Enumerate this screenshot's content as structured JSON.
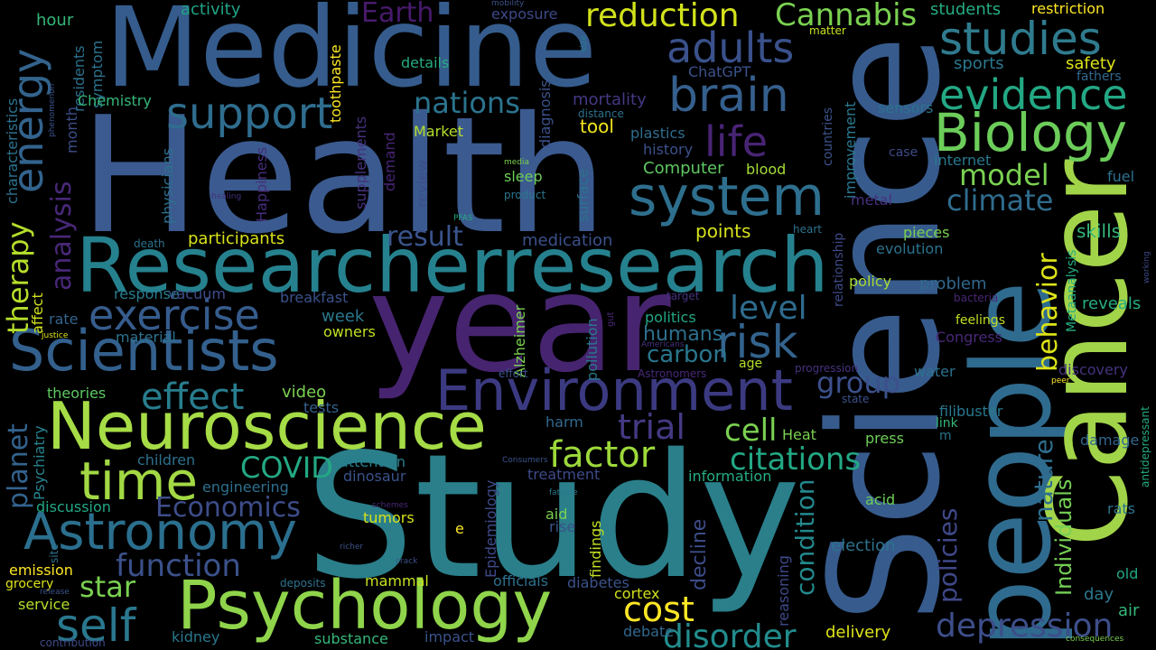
{
  "words": [
    {
      "text": "Health",
      "color": "#3b5a8f"
    },
    {
      "text": "Study",
      "color": "#2a7f8a"
    },
    {
      "text": "Medicine",
      "color": "#355c8d"
    },
    {
      "text": "year",
      "color": "#47246f"
    },
    {
      "text": "Science",
      "color": "#375b8d"
    },
    {
      "text": "people",
      "color": "#2f6b8e"
    },
    {
      "text": "Cancer",
      "color": "#a2d44a"
    },
    {
      "text": "Researcherresearch",
      "color": "#26818e"
    },
    {
      "text": "Neuroscience",
      "color": "#a6dc46"
    },
    {
      "text": "Psychology",
      "color": "#8fd44b"
    },
    {
      "text": "Environment",
      "color": "#3b3a81"
    },
    {
      "text": "Scientists",
      "color": "#33608d"
    },
    {
      "text": "Biology",
      "color": "#6ccd5a"
    },
    {
      "text": "system",
      "color": "#2e6f8e"
    },
    {
      "text": "brain",
      "color": "#355f8d"
    },
    {
      "text": "Astronomy",
      "color": "#2b6f8e"
    },
    {
      "text": "time",
      "color": "#a2d944"
    },
    {
      "text": "studies",
      "color": "#2f7b8e"
    },
    {
      "text": "evidence",
      "color": "#23a884"
    },
    {
      "text": "support",
      "color": "#2f6d8e"
    },
    {
      "text": "exercise",
      "color": "#365c8d"
    },
    {
      "text": "energy",
      "color": "#33638d"
    },
    {
      "text": "adults",
      "color": "#3a518b"
    },
    {
      "text": "life",
      "color": "#482475"
    },
    {
      "text": "risk",
      "color": "#33638d"
    },
    {
      "text": "effect",
      "color": "#287d8e"
    },
    {
      "text": "self",
      "color": "#2a788e"
    },
    {
      "text": "factor",
      "color": "#9dd93b"
    },
    {
      "text": "reduction",
      "color": "#d2e21b"
    },
    {
      "text": "Cannabis",
      "color": "#7ad151"
    },
    {
      "text": "cost",
      "color": "#fde725"
    },
    {
      "text": "disorder",
      "color": "#228c8d"
    },
    {
      "text": "depression",
      "color": "#3d4e8a"
    },
    {
      "text": "citations",
      "color": "#22a884"
    },
    {
      "text": "cell",
      "color": "#7ad151"
    },
    {
      "text": "trial",
      "color": "#443a83"
    },
    {
      "text": "model",
      "color": "#7ad151"
    },
    {
      "text": "nations",
      "color": "#2b748e"
    },
    {
      "text": "level",
      "color": "#2f6b8e"
    },
    {
      "text": "group",
      "color": "#3c508b"
    },
    {
      "text": "climate",
      "color": "#2f6c8e"
    },
    {
      "text": "result",
      "color": "#3a548c"
    },
    {
      "text": "COVID",
      "color": "#23a983"
    },
    {
      "text": "star",
      "color": "#7ad151"
    },
    {
      "text": "function",
      "color": "#3b518b"
    },
    {
      "text": "Economics",
      "color": "#3d4d8a"
    },
    {
      "text": "therapy",
      "color": "#b5de2b"
    },
    {
      "text": "analysis",
      "color": "#482878"
    },
    {
      "text": "planet",
      "color": "#33638d"
    },
    {
      "text": "behavior",
      "color": "#dde318"
    },
    {
      "text": "nature",
      "color": "#2e6e8e"
    },
    {
      "text": "Individuals",
      "color": "#75d054"
    },
    {
      "text": "policies",
      "color": "#3f4889"
    },
    {
      "text": "condition",
      "color": "#23898e"
    },
    {
      "text": "decline",
      "color": "#3d4d8a"
    },
    {
      "text": "Earth",
      "color": "#481a6c"
    },
    {
      "text": "participants",
      "color": "#d8e219"
    },
    {
      "text": "points",
      "color": "#d5e21a"
    },
    {
      "text": "medication",
      "color": "#3b518b"
    },
    {
      "text": "carbon",
      "color": "#2a768e"
    },
    {
      "text": "humans",
      "color": "#2d708e"
    },
    {
      "text": "politics",
      "color": "#22a785"
    },
    {
      "text": "Computer",
      "color": "#5ec962"
    },
    {
      "text": "blood",
      "color": "#a5db36"
    },
    {
      "text": "plastics",
      "color": "#2e6e8e"
    },
    {
      "text": "history",
      "color": "#3b518b"
    },
    {
      "text": "tool",
      "color": "#f1e51d"
    },
    {
      "text": "mortality",
      "color": "#443983"
    },
    {
      "text": "Market",
      "color": "#b5de2b"
    },
    {
      "text": "sleep",
      "color": "#6ece58"
    },
    {
      "text": "surface",
      "color": "#2c718e"
    },
    {
      "text": "ChatGPT",
      "color": "#3b528b"
    },
    {
      "text": "details",
      "color": "#25ac82"
    },
    {
      "text": "activity",
      "color": "#20a386"
    },
    {
      "text": "exposure",
      "color": "#3e4989"
    },
    {
      "text": "hour",
      "color": "#35b779"
    },
    {
      "text": "symptom",
      "color": "#2c738e"
    },
    {
      "text": "residents",
      "color": "#2d718e"
    },
    {
      "text": "month",
      "color": "#3d4e8a"
    },
    {
      "text": "Chemistry",
      "color": "#35b779"
    },
    {
      "text": "characteristics",
      "color": "#2c728e"
    },
    {
      "text": "toothpaste",
      "color": "#fde725"
    },
    {
      "text": "supplements",
      "color": "#46327e"
    },
    {
      "text": "demand",
      "color": "#482475"
    },
    {
      "text": "review",
      "color": "#3d4d8a"
    },
    {
      "text": "diagnosis",
      "color": "#3b528b"
    },
    {
      "text": "physicians",
      "color": "#2d708e"
    },
    {
      "text": "Happiness",
      "color": "#472d7b"
    },
    {
      "text": "response",
      "color": "#287c8e"
    },
    {
      "text": "vacuum",
      "color": "#3e4c8a"
    },
    {
      "text": "breakfast",
      "color": "#3b528b"
    },
    {
      "text": "rate",
      "color": "#33638d"
    },
    {
      "text": "material",
      "color": "#2c728e"
    },
    {
      "text": "affect",
      "color": "#d0e11c"
    },
    {
      "text": "week",
      "color": "#2a788e"
    },
    {
      "text": "owners",
      "color": "#c2df23"
    },
    {
      "text": "theories",
      "color": "#5ec962"
    },
    {
      "text": "video",
      "color": "#7ad151"
    },
    {
      "text": "tests",
      "color": "#35608d"
    },
    {
      "text": "Psychiatry",
      "color": "#26828e"
    },
    {
      "text": "children",
      "color": "#2c728e"
    },
    {
      "text": "engineering",
      "color": "#2e6f8e"
    },
    {
      "text": "discussion",
      "color": "#22a884"
    },
    {
      "text": "attention",
      "color": "#277f8e"
    },
    {
      "text": "dinosaur",
      "color": "#3a538b"
    },
    {
      "text": "treatment",
      "color": "#3e4a89"
    },
    {
      "text": "tumors",
      "color": "#d5e21a"
    },
    {
      "text": "aid",
      "color": "#7ad151"
    },
    {
      "text": "rise",
      "color": "#3b528b"
    },
    {
      "text": "emission",
      "color": "#fde725"
    },
    {
      "text": "grocery",
      "color": "#dde318"
    },
    {
      "text": "service",
      "color": "#b5de2b"
    },
    {
      "text": "mammal",
      "color": "#c8e020"
    },
    {
      "text": "officials",
      "color": "#2d708e"
    },
    {
      "text": "diabetes",
      "color": "#3b528b"
    },
    {
      "text": "substance",
      "color": "#35b779"
    },
    {
      "text": "impact",
      "color": "#3b528b"
    },
    {
      "text": "kidney",
      "color": "#2a788e"
    },
    {
      "text": "debate",
      "color": "#31688e"
    },
    {
      "text": "delivery",
      "color": "#dde318"
    },
    {
      "text": "cortex",
      "color": "#d0e11c"
    },
    {
      "text": "findings",
      "color": "#c2df23"
    },
    {
      "text": "Epidemiology",
      "color": "#3e4a89"
    },
    {
      "text": "Alzheimer",
      "color": "#7ad151"
    },
    {
      "text": "pollution",
      "color": "#2a788e"
    },
    {
      "text": "harm",
      "color": "#31688e"
    },
    {
      "text": "election",
      "color": "#2c728e"
    },
    {
      "text": "information",
      "color": "#25ac82"
    },
    {
      "text": "acid",
      "color": "#6ece58"
    },
    {
      "text": "press",
      "color": "#6ece58"
    },
    {
      "text": "reasoning",
      "color": "#3e4a89"
    },
    {
      "text": "policy",
      "color": "#a8db34"
    },
    {
      "text": "problem",
      "color": "#31688e"
    },
    {
      "text": "evolution",
      "color": "#2c728e"
    },
    {
      "text": "pieces",
      "color": "#7ad151"
    },
    {
      "text": "relationship",
      "color": "#3e4a89"
    },
    {
      "text": "improvement",
      "color": "#2a788e"
    },
    {
      "text": "countries",
      "color": "#3b528b"
    },
    {
      "text": "metal",
      "color": "#46327e"
    },
    {
      "text": "sensors",
      "color": "#2c728e"
    },
    {
      "text": "internet",
      "color": "#2a788e"
    },
    {
      "text": "case",
      "color": "#3e4a89"
    },
    {
      "text": "fuel",
      "color": "#2c728e"
    },
    {
      "text": "skills",
      "color": "#35b779"
    },
    {
      "text": "safety",
      "color": "#dde318"
    },
    {
      "text": "fathers",
      "color": "#31688e"
    },
    {
      "text": "sports",
      "color": "#2a788e"
    },
    {
      "text": "students",
      "color": "#25ac82"
    },
    {
      "text": "restriction",
      "color": "#fde725"
    },
    {
      "text": "matter",
      "color": "#c8e020"
    },
    {
      "text": "Congress",
      "color": "#482878"
    },
    {
      "text": "feelings",
      "color": "#c2df23"
    },
    {
      "text": "Metaanalysis",
      "color": "#25ac82"
    },
    {
      "text": "reveals",
      "color": "#25ac82"
    },
    {
      "text": "discovery",
      "color": "#46327e"
    },
    {
      "text": "water",
      "color": "#2c728e"
    },
    {
      "text": "filibuster",
      "color": "#2a788e"
    },
    {
      "text": "link",
      "color": "#35b779"
    },
    {
      "text": "damage",
      "color": "#31688e"
    },
    {
      "text": "Heat",
      "color": "#7ad151"
    },
    {
      "text": "rats",
      "color": "#2c728e"
    },
    {
      "text": "old",
      "color": "#22a884"
    },
    {
      "text": "day",
      "color": "#2a788e"
    },
    {
      "text": "air",
      "color": "#35b779"
    },
    {
      "text": "antidepressant",
      "color": "#25ac82"
    },
    {
      "text": "heart",
      "color": "#2c728e"
    },
    {
      "text": "bacteria",
      "color": "#482878"
    },
    {
      "text": "age",
      "color": "#b5de2b"
    },
    {
      "text": "progression",
      "color": "#46327e"
    },
    {
      "text": "state",
      "color": "#3b528b"
    },
    {
      "text": "Americans",
      "color": "#46327e"
    },
    {
      "text": "Astronomers",
      "color": "#482878"
    },
    {
      "text": "target",
      "color": "#46327e"
    },
    {
      "text": "effort",
      "color": "#3b528b"
    },
    {
      "text": "gut",
      "color": "#482878"
    },
    {
      "text": "Consumers",
      "color": "#3b528b"
    },
    {
      "text": "schemes",
      "color": "#482878"
    },
    {
      "text": "fatigue",
      "color": "#2a788e"
    },
    {
      "text": "crack",
      "color": "#3b528b"
    },
    {
      "text": "richer",
      "color": "#3b528b"
    },
    {
      "text": "deposits",
      "color": "#2c728e"
    },
    {
      "text": "contribution",
      "color": "#3e4a89"
    },
    {
      "text": "release",
      "color": "#3b528b"
    },
    {
      "text": "consequences",
      "color": "#7ad151"
    },
    {
      "text": "PFAS",
      "color": "#25ac82"
    },
    {
      "text": "media",
      "color": "#7ad151"
    },
    {
      "text": "product",
      "color": "#2a788e"
    },
    {
      "text": "distance",
      "color": "#2c728e"
    },
    {
      "text": "size",
      "color": "#2a788e"
    },
    {
      "text": "mobility",
      "color": "#3b528b"
    },
    {
      "text": "death",
      "color": "#2c728e"
    },
    {
      "text": "justice",
      "color": "#dde318"
    },
    {
      "text": "healing",
      "color": "#46327e"
    },
    {
      "text": "phenomenon",
      "color": "#3b528b"
    },
    {
      "text": "working",
      "color": "#3e4a89"
    },
    {
      "text": "peer",
      "color": "#fde725"
    },
    {
      "text": "e",
      "color": "#fde725"
    },
    {
      "text": "m",
      "color": "#2c728e"
    },
    {
      "text": "site",
      "color": "#2c728e"
    }
  ]
}
